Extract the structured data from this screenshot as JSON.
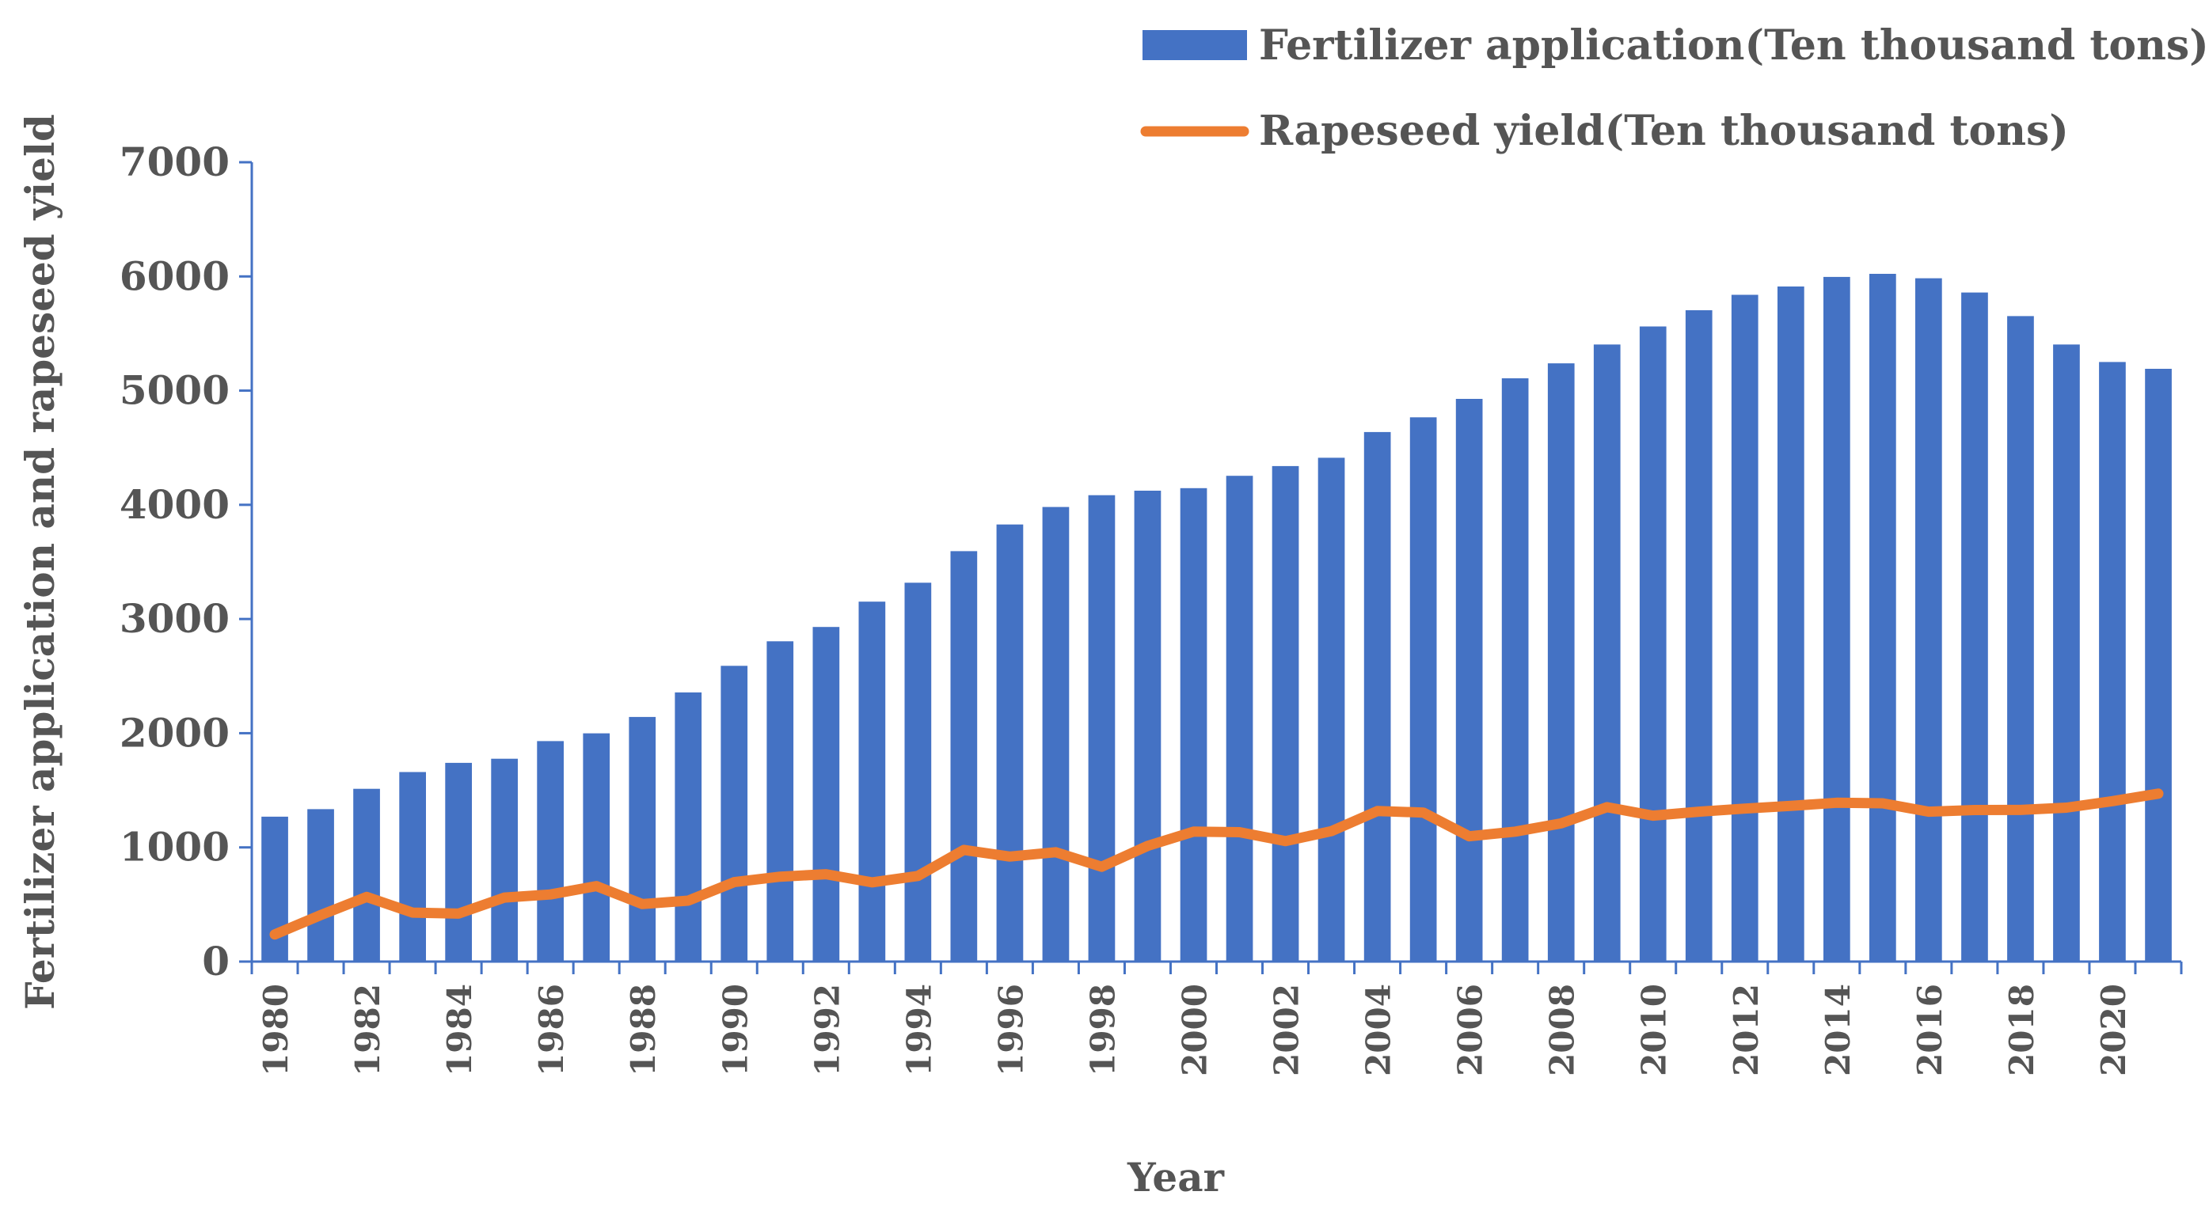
{
  "chart_data": {
    "type": "bar",
    "xlabel": "Year",
    "ylabel": "Fertilizer application and rapeseed yield",
    "ylim": [
      0,
      7000
    ],
    "yticks": [
      0,
      1000,
      2000,
      3000,
      4000,
      5000,
      6000,
      7000
    ],
    "grid": false,
    "legend_position": "top-right",
    "categories": [
      1980,
      1981,
      1982,
      1983,
      1984,
      1985,
      1986,
      1987,
      1988,
      1989,
      1990,
      1991,
      1992,
      1993,
      1994,
      1995,
      1996,
      1997,
      1998,
      1999,
      2000,
      2001,
      2002,
      2003,
      2004,
      2005,
      2006,
      2007,
      2008,
      2009,
      2010,
      2011,
      2012,
      2013,
      2014,
      2015,
      2016,
      2017,
      2018,
      2019,
      2020,
      2021
    ],
    "xtick_labels": [
      "1980",
      "1982",
      "1984",
      "1986",
      "1988",
      "1990",
      "1992",
      "1994",
      "1996",
      "1998",
      "2000",
      "2002",
      "2004",
      "2006",
      "2008",
      "2010",
      "2012",
      "2014",
      "2016",
      "2018",
      "2020"
    ],
    "series": [
      {
        "name": "Fertilizer application(Ten thousand tons)",
        "type": "bar",
        "color": "#4472C4",
        "values": [
          1269,
          1335,
          1513,
          1660,
          1740,
          1776,
          1931,
          1999,
          2142,
          2357,
          2590,
          2805,
          2930,
          3152,
          3318,
          3594,
          3828,
          3981,
          4084,
          4124,
          4146,
          4254,
          4339,
          4412,
          4637,
          4766,
          4928,
          5108,
          5239,
          5404,
          5562,
          5704,
          5839,
          5912,
          5996,
          6023,
          5984,
          5859,
          5653,
          5404,
          5251,
          5191
        ]
      },
      {
        "name": "Rapeseed yield(Ten thousand tons)",
        "type": "line",
        "color": "#ED7D31",
        "values": [
          238,
          407,
          566,
          429,
          420,
          561,
          588,
          661,
          504,
          534,
          696,
          744,
          765,
          694,
          750,
          978,
          920,
          958,
          830,
          1013,
          1138,
          1133,
          1055,
          1142,
          1318,
          1305,
          1097,
          1138,
          1210,
          1352,
          1278,
          1313,
          1340,
          1363,
          1391,
          1386,
          1313,
          1327,
          1328,
          1348,
          1405,
          1471
        ]
      }
    ]
  }
}
